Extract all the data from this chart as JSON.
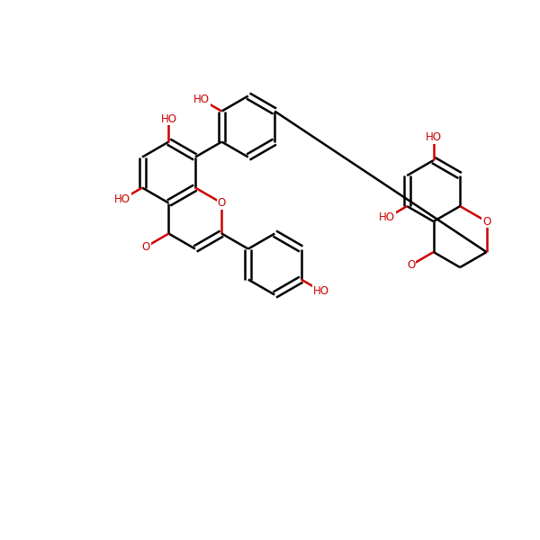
{
  "bg_color": "#ffffff",
  "bond_color": "#000000",
  "heteroatom_color": "#cc0000",
  "line_width": 1.8,
  "font_size": 8.5,
  "fig_size": [
    6.0,
    6.0
  ],
  "dpi": 100,
  "xlim": [
    0,
    10
  ],
  "ylim": [
    0,
    10
  ]
}
